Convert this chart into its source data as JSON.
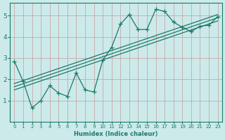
{
  "xlabel": "Humidex (Indice chaleur)",
  "bg_color": "#cceaea",
  "line_color": "#1a7a6a",
  "grid_color": "#c8a8a8",
  "xlim": [
    -0.5,
    23.5
  ],
  "ylim": [
    0,
    5.6
  ],
  "xticks": [
    0,
    1,
    2,
    3,
    4,
    5,
    6,
    7,
    8,
    9,
    10,
    11,
    12,
    13,
    14,
    15,
    16,
    17,
    18,
    19,
    20,
    21,
    22,
    23
  ],
  "yticks": [
    1,
    2,
    3,
    4,
    5
  ],
  "main_x": [
    0,
    1,
    2,
    3,
    4,
    5,
    6,
    7,
    8,
    9,
    10,
    11,
    12,
    13,
    14,
    15,
    16,
    17,
    18,
    19,
    20,
    21,
    22,
    23
  ],
  "main_y": [
    2.85,
    1.9,
    0.65,
    1.0,
    1.7,
    1.35,
    1.2,
    2.3,
    1.5,
    1.4,
    2.9,
    3.5,
    4.6,
    5.05,
    4.35,
    4.35,
    5.3,
    5.2,
    4.7,
    4.45,
    4.25,
    4.5,
    4.55,
    4.95
  ],
  "reg_lines": [
    {
      "x": [
        0,
        23
      ],
      "y": [
        1.5,
        4.75
      ]
    },
    {
      "x": [
        0,
        23
      ],
      "y": [
        1.65,
        4.9
      ]
    },
    {
      "x": [
        0,
        23
      ],
      "y": [
        1.8,
        5.05
      ]
    }
  ]
}
